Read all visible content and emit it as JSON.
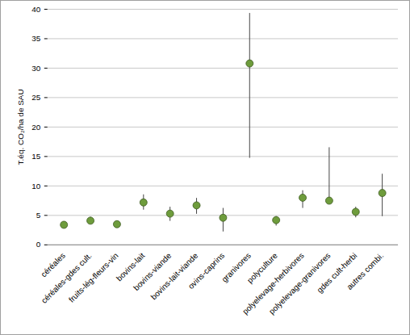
{
  "chart_data": {
    "type": "scatter",
    "y_label": "T.éq. CO₂/ha de SAU",
    "categories": [
      "céréales",
      "céréales-gdes cult.",
      "fruits-lég-fleurs-vin",
      "bovins-lait",
      "bovins-viande",
      "bovins-lait-viande",
      "ovins-caprins",
      "granivores",
      "polyculture",
      "polyelevage-herbivores",
      "polyelevage-granivores",
      "gdes cult-herbi",
      "autres combi."
    ],
    "values": [
      3.4,
      4.1,
      3.5,
      7.2,
      5.3,
      6.7,
      4.6,
      30.8,
      4.2,
      8.0,
      7.5,
      5.6,
      8.8
    ],
    "error_low": [
      3.2,
      3.5,
      3.1,
      5.9,
      4.0,
      5.2,
      2.2,
      14.7,
      3.2,
      6.2,
      7.2,
      4.6,
      4.8
    ],
    "error_high": [
      3.6,
      4.7,
      3.9,
      8.5,
      6.4,
      7.9,
      6.2,
      39.3,
      4.8,
      9.2,
      16.5,
      6.4,
      12.0
    ],
    "color": "#6e9c3c",
    "marker": "circle",
    "ylim": [
      0,
      40
    ],
    "yticks": [
      0,
      5,
      10,
      15,
      20,
      25,
      30,
      35,
      40
    ],
    "grid": true
  }
}
